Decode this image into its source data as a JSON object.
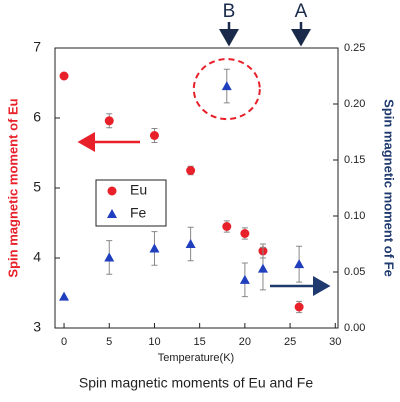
{
  "chart_data": {
    "type": "scatter",
    "x_label": "Temperature(K)",
    "y_label": "Spin magnetic moment of Eu",
    "y2_label": "Spin magnetic moment of Fe",
    "caption": "Spin magnetic moments of Eu and Fe",
    "annotations": [
      "B",
      "A"
    ],
    "x": [
      0,
      5,
      10,
      14,
      18,
      20,
      22,
      26
    ],
    "xlim": [
      -1,
      30.3
    ],
    "xticks": [
      0,
      5,
      10,
      15,
      20,
      25,
      30
    ],
    "ylim": [
      3,
      7
    ],
    "yticks": [
      3,
      4,
      5,
      6,
      7
    ],
    "y2lim": [
      0,
      0.25
    ],
    "y2ticks": [
      {
        "value": 0,
        "label": "0.00"
      },
      {
        "value": 0.05,
        "label": "0.05"
      },
      {
        "value": 0.1,
        "label": "0.10"
      },
      {
        "value": 0.15,
        "label": "0.15"
      },
      {
        "value": 0.2,
        "label": "0.20"
      },
      {
        "value": 0.25,
        "label": "0.25"
      }
    ],
    "legend": "center-left",
    "series": [
      {
        "name": "Eu",
        "color": "#e8202a",
        "marker": "circle",
        "values": [
          6.6,
          5.96,
          5.75,
          5.25,
          4.45,
          4.35,
          4.1,
          3.3
        ],
        "errors": [
          0,
          0.1,
          0.1,
          0.06,
          0.08,
          0.08,
          0.1,
          0.08
        ]
      },
      {
        "name": "Fe",
        "color": "#1f3fbf",
        "marker": "triangle",
        "axis": "y2",
        "values": [
          0.028,
          0.063,
          0.071,
          0.075,
          0.216,
          0.043,
          0.053,
          0.057
        ],
        "errors": [
          0,
          0.015,
          0.015,
          0.015,
          0.015,
          0.015,
          0.019,
          0.016
        ]
      }
    ]
  }
}
